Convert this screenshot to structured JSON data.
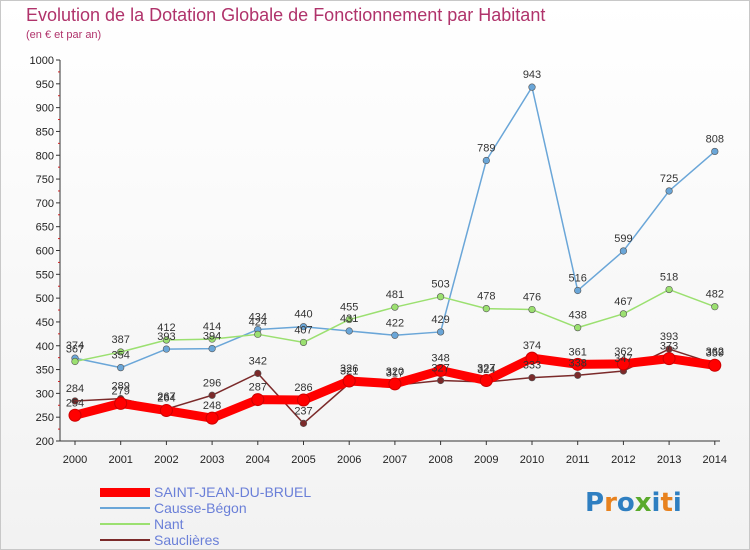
{
  "header": {
    "title": "Evolution de la Dotation Globale de Fonctionnement par Habitant",
    "subtitle": "(en € et par an)"
  },
  "logo": {
    "text": "Proxiti",
    "colors": [
      "#2f7fc1",
      "#e8821e",
      "#2f7fc1",
      "#5aaa2b",
      "#2f7fc1",
      "#e8821e",
      "#2f7fc1"
    ]
  },
  "chart_data": {
    "type": "line",
    "title": "Evolution de la Dotation Globale de Fonctionnement par Habitant",
    "subtitle": "(en € et par an)",
    "xlabel": "",
    "ylabel": "",
    "x": [
      "2000",
      "2001",
      "2002",
      "2003",
      "2004",
      "2005",
      "2006",
      "2007",
      "2008",
      "2009",
      "2010",
      "2011",
      "2012",
      "2013",
      "2014"
    ],
    "ylim": [
      200,
      1000
    ],
    "yticks": [
      "200",
      "250",
      "300",
      "350",
      "400",
      "450",
      "500",
      "550",
      "600",
      "650",
      "700",
      "750",
      "800",
      "850",
      "900",
      "950",
      "1000"
    ],
    "grid": false,
    "legend": "bottom-left",
    "series": [
      {
        "name": "SAINT-JEAN-DU-BRUEL",
        "color": "#ff0000",
        "values": [
          254,
          279,
          264,
          248,
          287,
          286,
          326,
          320,
          348,
          327,
          374,
          361,
          362,
          373,
          359
        ],
        "labels": [
          "254",
          "279",
          "264",
          "248",
          "287",
          "286",
          "326",
          "320",
          "348",
          "327",
          "374",
          "361",
          "362",
          "373",
          "359"
        ]
      },
      {
        "name": "Causse-Bégon",
        "color": "#6aa6d8",
        "values": [
          374,
          354,
          393,
          394,
          434,
          440,
          431,
          422,
          429,
          789,
          943,
          516,
          599,
          725,
          808
        ],
        "labels": [
          "374",
          "354",
          "393",
          "394",
          "434",
          "440",
          "431",
          "422",
          "429",
          "789",
          "943",
          "516",
          "599",
          "725",
          "808"
        ]
      },
      {
        "name": "Nant",
        "color": "#9be070",
        "values": [
          367,
          387,
          412,
          414,
          424,
          407,
          455,
          481,
          503,
          478,
          476,
          438,
          467,
          518,
          482
        ],
        "labels": [
          "367",
          "387",
          "412",
          "414",
          "424",
          "407",
          "455",
          "481",
          "503",
          "478",
          "476",
          "438",
          "467",
          "518",
          "482"
        ]
      },
      {
        "name": "Sauclières",
        "color": "#7b2a2a",
        "values": [
          284,
          289,
          267,
          296,
          342,
          237,
          321,
          317,
          327,
          324,
          333,
          338,
          347,
          393,
          362
        ],
        "labels": [
          "284",
          "289",
          "267",
          "296",
          "342",
          "237",
          "321",
          "317",
          "327",
          "324",
          "333",
          "338",
          "347",
          "393",
          "362"
        ]
      }
    ]
  }
}
